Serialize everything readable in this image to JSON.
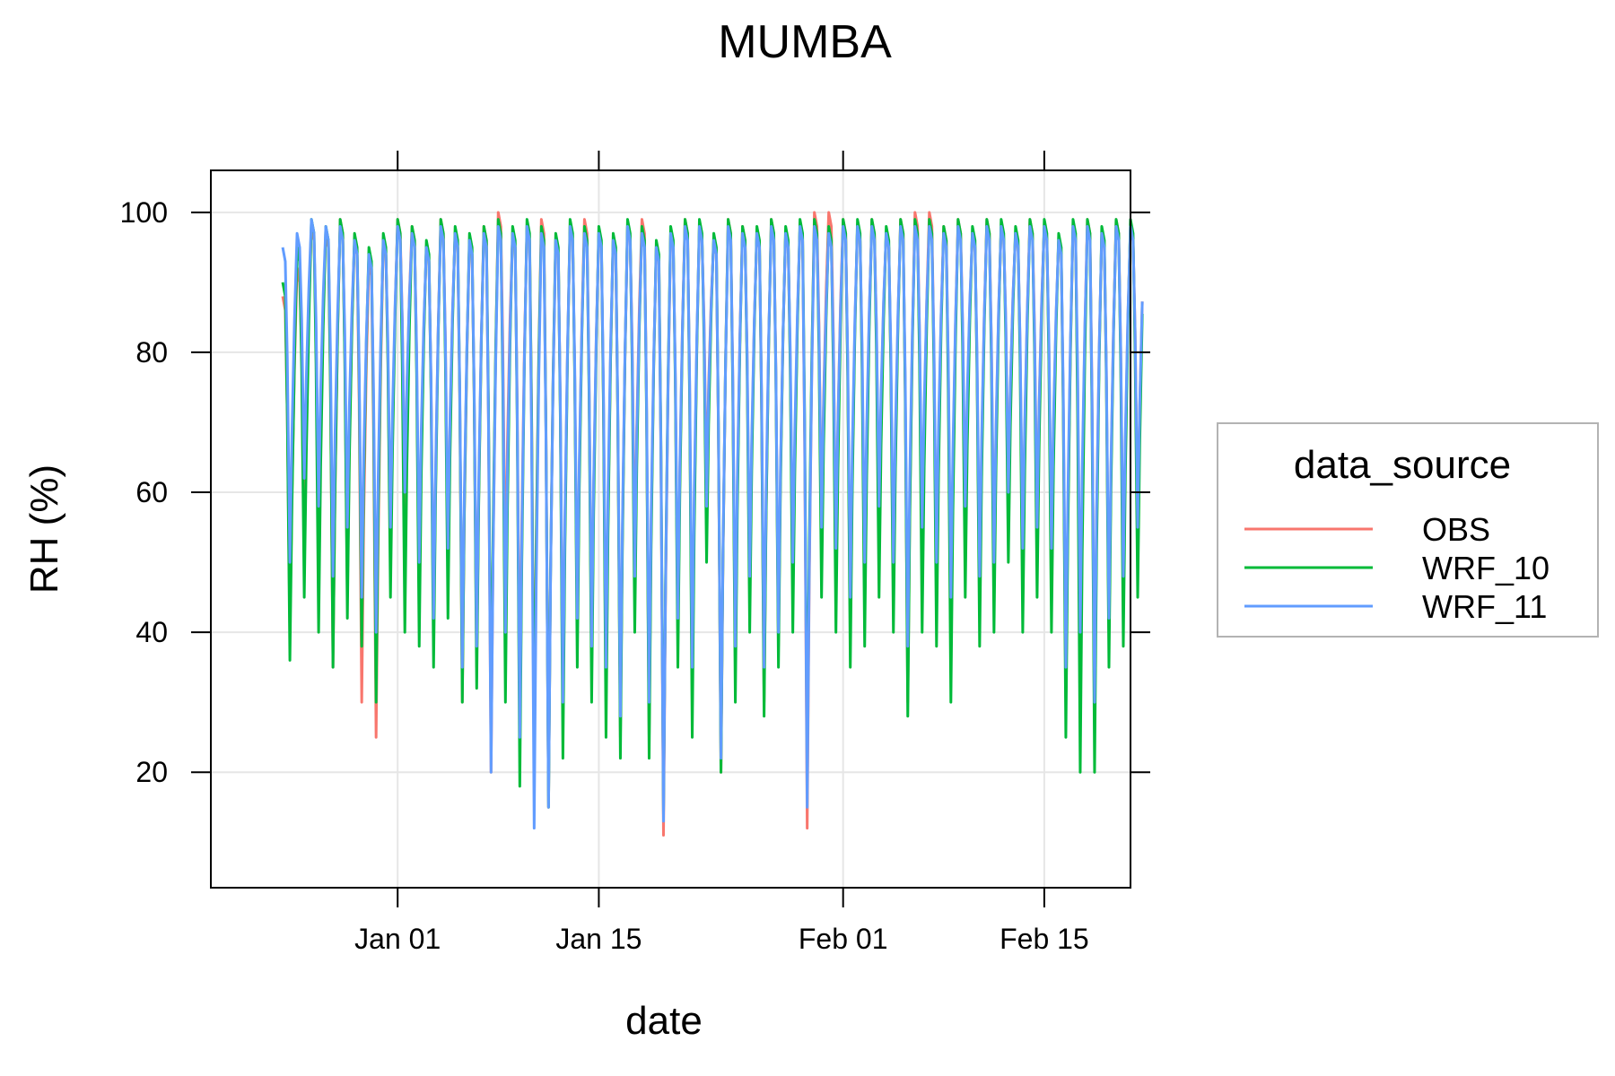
{
  "chart_data": {
    "type": "line",
    "title": "MUMBA",
    "xlabel": "date",
    "ylabel": "RH (%)",
    "x_type": "date",
    "xlim": [
      "2012-12-19",
      "2013-02-21"
    ],
    "ylim": [
      3.5,
      106
    ],
    "x_ticks": [
      {
        "date": "2013-01-01",
        "label": "Jan 01"
      },
      {
        "date": "2013-01-15",
        "label": "Jan 15"
      },
      {
        "date": "2013-02-01",
        "label": "Feb 01"
      },
      {
        "date": "2013-02-15",
        "label": "Feb 15"
      }
    ],
    "y_ticks": [
      20,
      40,
      60,
      80,
      100
    ],
    "grid": true,
    "legend": {
      "title": "data_source",
      "position": "right"
    },
    "series": [
      {
        "name": "OBS",
        "color": "#F8766D",
        "daily_max": [
          88,
          92,
          98,
          97,
          99,
          96,
          93,
          96,
          99,
          98,
          95,
          99,
          97,
          96,
          98,
          100,
          97,
          98,
          99,
          96,
          98,
          99,
          97,
          96,
          98,
          99,
          95,
          97,
          99,
          98,
          96,
          99,
          98,
          97,
          99,
          97,
          98,
          100,
          100,
          99,
          98,
          99,
          97,
          99,
          100,
          100,
          98,
          99,
          97,
          99,
          98,
          97,
          99,
          98,
          96,
          98,
          99,
          97,
          99,
          98
        ],
        "daily_min": [
          40,
          60,
          55,
          35,
          45,
          30,
          25,
          50,
          58,
          45,
          40,
          50,
          30,
          35,
          20,
          45,
          28,
          22,
          15,
          28,
          40,
          35,
          30,
          25,
          50,
          25,
          11,
          40,
          30,
          60,
          20,
          35,
          45,
          30,
          38,
          45,
          12,
          55,
          50,
          40,
          45,
          55,
          45,
          30,
          50,
          45,
          40,
          55,
          45,
          48,
          60,
          50,
          55,
          50,
          30,
          35,
          28,
          40,
          45,
          55
        ]
      },
      {
        "name": "WRF_10",
        "color": "#00BA38",
        "daily_max": [
          90,
          95,
          99,
          98,
          99,
          97,
          95,
          97,
          99,
          98,
          96,
          99,
          98,
          97,
          98,
          99,
          98,
          99,
          98,
          97,
          99,
          98,
          98,
          97,
          99,
          98,
          96,
          98,
          99,
          99,
          97,
          99,
          98,
          98,
          99,
          98,
          99,
          99,
          98,
          99,
          99,
          99,
          98,
          99,
          99,
          99,
          98,
          99,
          98,
          99,
          99,
          98,
          99,
          99,
          97,
          99,
          99,
          98,
          99,
          99
        ],
        "daily_min": [
          36,
          45,
          40,
          35,
          42,
          38,
          30,
          45,
          40,
          38,
          35,
          42,
          30,
          32,
          25,
          30,
          18,
          20,
          15,
          22,
          35,
          30,
          25,
          22,
          40,
          22,
          14,
          35,
          25,
          50,
          20,
          30,
          40,
          28,
          35,
          40,
          20,
          45,
          40,
          35,
          38,
          45,
          40,
          28,
          40,
          38,
          30,
          45,
          38,
          40,
          50,
          40,
          45,
          40,
          25,
          20,
          20,
          35,
          38,
          45
        ]
      },
      {
        "name": "WRF_11",
        "color": "#619CFF",
        "daily_max": [
          95,
          97,
          99,
          98,
          98,
          96,
          94,
          96,
          98,
          97,
          95,
          98,
          97,
          96,
          97,
          98,
          97,
          98,
          97,
          96,
          98,
          97,
          97,
          96,
          98,
          97,
          95,
          97,
          98,
          98,
          96,
          98,
          97,
          97,
          98,
          97,
          98,
          98,
          97,
          98,
          98,
          98,
          97,
          98,
          98,
          98,
          97,
          98,
          97,
          98,
          98,
          97,
          98,
          98,
          96,
          98,
          98,
          97,
          98,
          98
        ],
        "daily_min": [
          50,
          62,
          58,
          48,
          55,
          45,
          40,
          55,
          60,
          50,
          42,
          52,
          35,
          38,
          20,
          40,
          25,
          12,
          15,
          30,
          42,
          38,
          35,
          28,
          48,
          30,
          13,
          42,
          35,
          58,
          22,
          38,
          48,
          35,
          40,
          50,
          15,
          55,
          52,
          45,
          50,
          58,
          50,
          38,
          55,
          50,
          45,
          58,
          48,
          50,
          60,
          52,
          55,
          52,
          35,
          40,
          30,
          42,
          48,
          55
        ]
      }
    ]
  }
}
